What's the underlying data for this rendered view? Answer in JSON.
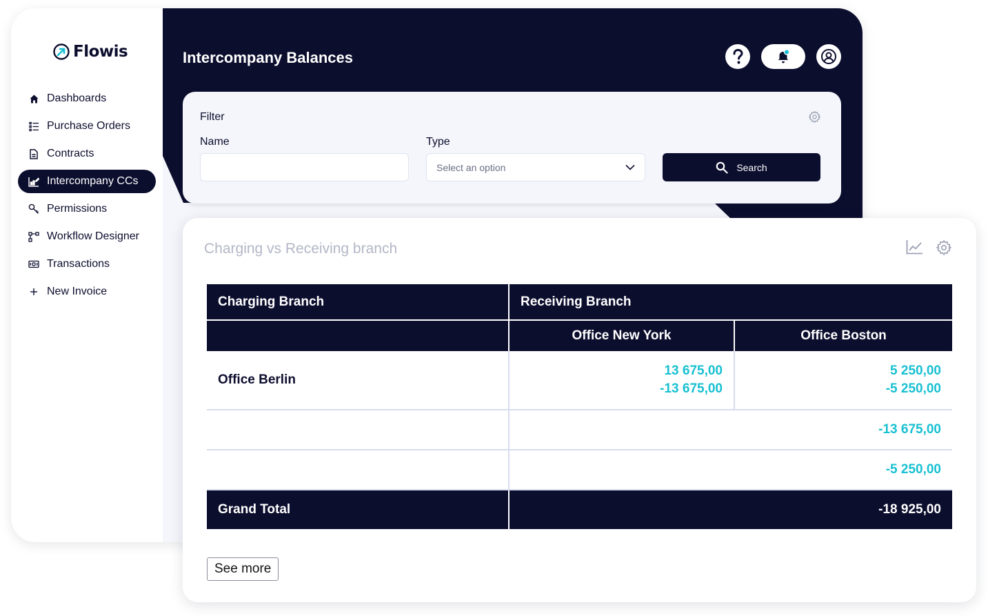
{
  "app": {
    "brand": "Flowis",
    "page_title": "Intercompany Balances"
  },
  "colors": {
    "navy": "#0c0e2e",
    "accent_cyan": "#17c0d2",
    "background_light": "#f4f6fb"
  },
  "sidebar": {
    "items": [
      {
        "label": "Dashboards",
        "icon": "home-icon",
        "active": false
      },
      {
        "label": "Purchase Orders",
        "icon": "list-icon",
        "active": false
      },
      {
        "label": "Contracts",
        "icon": "document-icon",
        "active": false
      },
      {
        "label": "Intercompany CCs",
        "icon": "chart-edit-icon",
        "active": true
      },
      {
        "label": "Permissions",
        "icon": "key-icon",
        "active": false
      },
      {
        "label": "Workflow Designer",
        "icon": "workflow-icon",
        "active": false
      },
      {
        "label": "Transactions",
        "icon": "money-icon",
        "active": false
      },
      {
        "label": "New Invoice",
        "icon": "plus-icon",
        "active": false
      }
    ]
  },
  "header": {
    "buttons": [
      "help-icon",
      "notification-bell-icon",
      "user-avatar-icon"
    ]
  },
  "filter": {
    "title": "Filter",
    "name_label": "Name",
    "name_value": "",
    "type_label": "Type",
    "type_placeholder": "Select an option",
    "search_label": "Search"
  },
  "report": {
    "title": "Charging vs Receiving branch",
    "header_charging": "Charging Branch",
    "header_receiving": "Receiving Branch",
    "col_1": "Office New York",
    "col_2": "Office Boston",
    "row_label": "Office Berlin",
    "ny_values": [
      "13 675,00",
      "-13 675,00"
    ],
    "boston_values": [
      "5 250,00",
      "-5 250,00"
    ],
    "subtotal_1": "-13 675,00",
    "subtotal_2": "-5 250,00",
    "grand_total_label": "Grand Total",
    "grand_total_value": "-18 925,00",
    "see_more_label": "See more"
  }
}
